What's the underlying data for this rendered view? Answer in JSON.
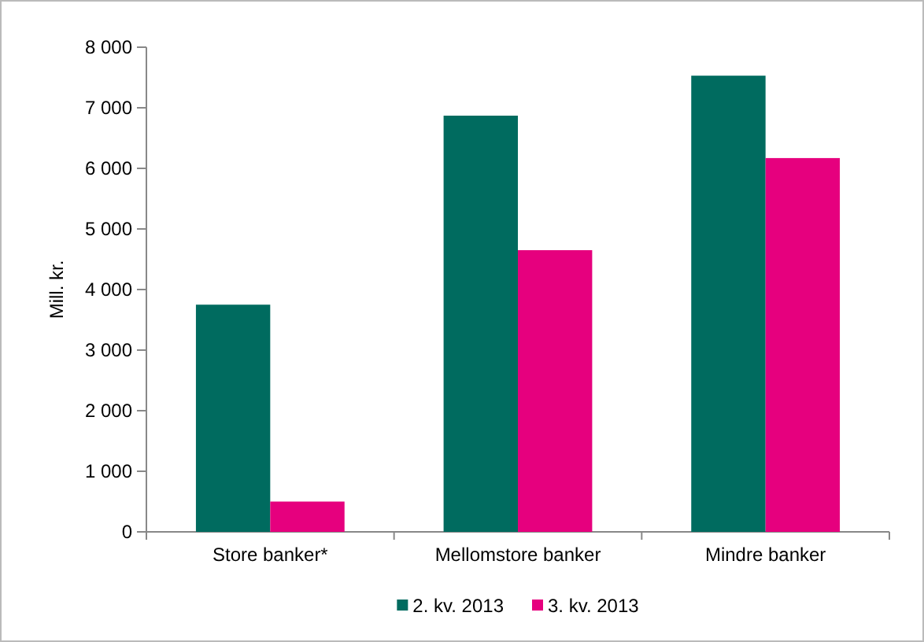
{
  "chart_data": {
    "type": "bar",
    "ylabel": "Mill. kr.",
    "categories": [
      "Store banker*",
      "Mellomstore banker",
      "Mindre banker"
    ],
    "series": [
      {
        "name": "2. kv. 2013",
        "color": "#006b5f",
        "values": [
          3750,
          6870,
          7530
        ]
      },
      {
        "name": "3. kv. 2013",
        "color": "#e6007e",
        "values": [
          500,
          4650,
          6170
        ]
      }
    ],
    "ylim": [
      0,
      8000
    ],
    "yticks": [
      {
        "value": 0,
        "label": "0"
      },
      {
        "value": 1000,
        "label": "1 000"
      },
      {
        "value": 2000,
        "label": "2 000"
      },
      {
        "value": 3000,
        "label": "3 000"
      },
      {
        "value": 4000,
        "label": "4 000"
      },
      {
        "value": 5000,
        "label": "5 000"
      },
      {
        "value": 6000,
        "label": "6 000"
      },
      {
        "value": 7000,
        "label": "7 000"
      },
      {
        "value": 8000,
        "label": "8 000"
      }
    ],
    "grid": false,
    "legend": "bottom"
  }
}
